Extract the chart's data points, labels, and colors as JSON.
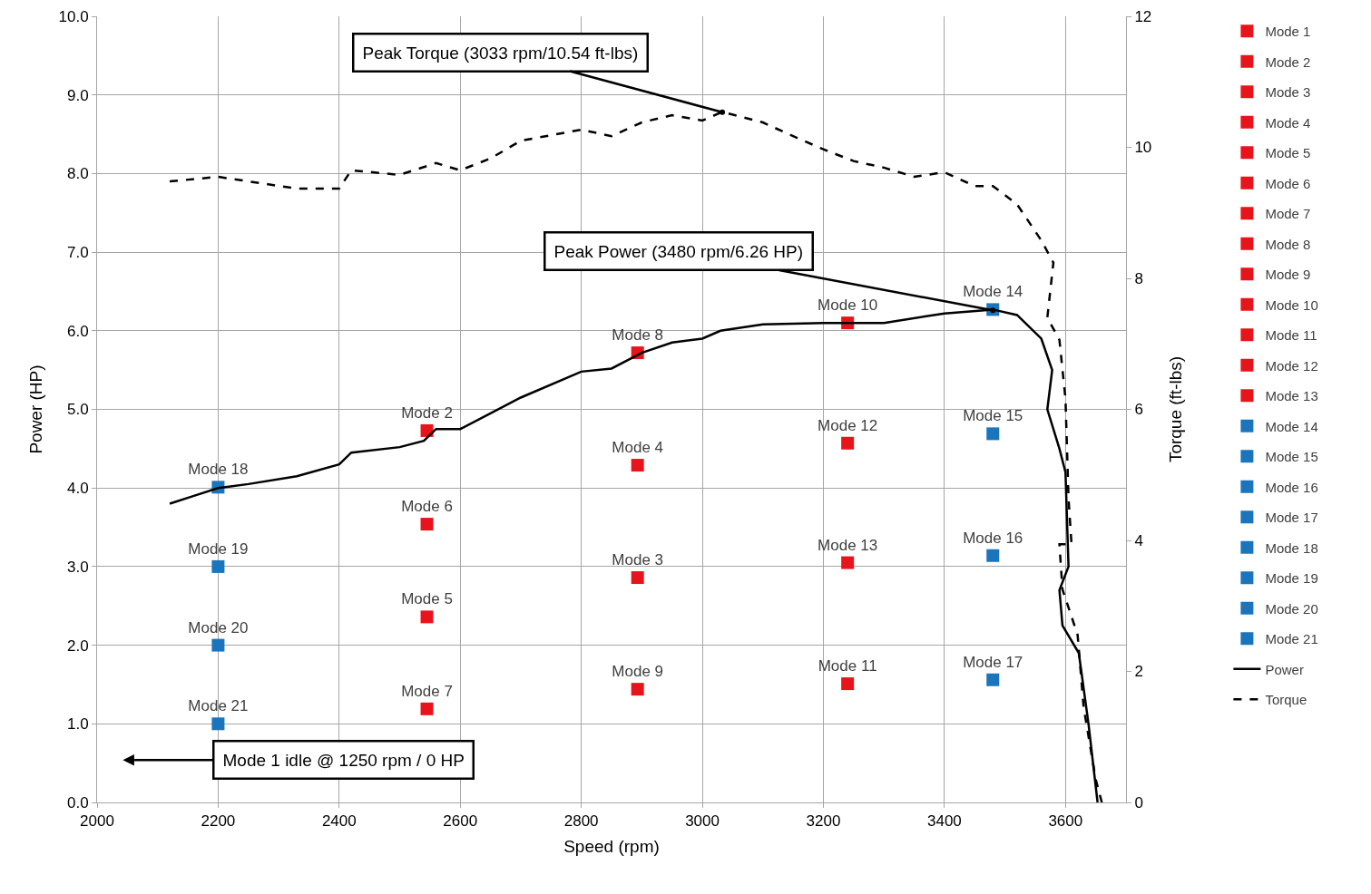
{
  "chart_data": {
    "type": "scatter",
    "xlabel": "Speed (rpm)",
    "ylabel": "Power (HP)",
    "y2label": "Torque (ft-lbs)",
    "xlim": [
      2000,
      3700
    ],
    "xticks": [
      2000,
      2200,
      2400,
      2600,
      2800,
      3000,
      3200,
      3400,
      3600
    ],
    "ylim": [
      0,
      10
    ],
    "yticks": [
      {
        "value": 0,
        "label": "0.0"
      },
      {
        "value": 1,
        "label": "1.0"
      },
      {
        "value": 2,
        "label": "2.0"
      },
      {
        "value": 3,
        "label": "3.0"
      },
      {
        "value": 4,
        "label": "4.0"
      },
      {
        "value": 5,
        "label": "5.0"
      },
      {
        "value": 6,
        "label": "6.0"
      },
      {
        "value": 7,
        "label": "7.0"
      },
      {
        "value": 8,
        "label": "8.0"
      },
      {
        "value": 9,
        "label": "9.0"
      },
      {
        "value": 10,
        "label": "10.0"
      }
    ],
    "y2lim": [
      0,
      12
    ],
    "y2ticks": [
      0,
      2,
      4,
      6,
      8,
      10,
      12
    ],
    "grid": true,
    "legend": "right",
    "marker": "square",
    "annotations": [
      {
        "text": "Peak Torque (3033 rpm/10.54 ft-lbs)",
        "x": 3033,
        "y": 8.78
      },
      {
        "text": "Peak Power (3480 rpm/6.26 HP)",
        "x": 3480,
        "y": 6.26
      },
      "Mode 1 idle @ 1250 rpm / 0 HP"
    ],
    "series": [
      {
        "name": "Mode 1",
        "color": "#e8141c",
        "x": [
          null
        ],
        "values": [
          null
        ]
      },
      {
        "name": "Mode 2",
        "color": "#e8141c",
        "x": [
          2545
        ],
        "values": [
          4.73
        ]
      },
      {
        "name": "Mode 3",
        "color": "#e8141c",
        "x": [
          2893
        ],
        "values": [
          2.86
        ]
      },
      {
        "name": "Mode 4",
        "color": "#e8141c",
        "x": [
          2893
        ],
        "values": [
          4.29
        ]
      },
      {
        "name": "Mode 5",
        "color": "#e8141c",
        "x": [
          2545
        ],
        "values": [
          2.36
        ]
      },
      {
        "name": "Mode 6",
        "color": "#e8141c",
        "x": [
          2545
        ],
        "values": [
          3.54
        ]
      },
      {
        "name": "Mode 7",
        "color": "#e8141c",
        "x": [
          2545
        ],
        "values": [
          1.19
        ]
      },
      {
        "name": "Mode 8",
        "color": "#e8141c",
        "x": [
          2893
        ],
        "values": [
          5.72
        ]
      },
      {
        "name": "Mode 9",
        "color": "#e8141c",
        "x": [
          2893
        ],
        "values": [
          1.44
        ]
      },
      {
        "name": "Mode 10",
        "color": "#e8141c",
        "x": [
          3240
        ],
        "values": [
          6.1
        ]
      },
      {
        "name": "Mode 11",
        "color": "#e8141c",
        "x": [
          3240
        ],
        "values": [
          1.51
        ]
      },
      {
        "name": "Mode 12",
        "color": "#e8141c",
        "x": [
          3240
        ],
        "values": [
          4.57
        ]
      },
      {
        "name": "Mode 13",
        "color": "#e8141c",
        "x": [
          3240
        ],
        "values": [
          3.05
        ]
      },
      {
        "name": "Mode 14",
        "color": "#1a75bc",
        "x": [
          3480
        ],
        "values": [
          6.27
        ]
      },
      {
        "name": "Mode 15",
        "color": "#1a75bc",
        "x": [
          3480
        ],
        "values": [
          4.69
        ]
      },
      {
        "name": "Mode 16",
        "color": "#1a75bc",
        "x": [
          3480
        ],
        "values": [
          3.14
        ]
      },
      {
        "name": "Mode 17",
        "color": "#1a75bc",
        "x": [
          3480
        ],
        "values": [
          1.56
        ]
      },
      {
        "name": "Mode 18",
        "color": "#1a75bc",
        "x": [
          2200
        ],
        "values": [
          4.01
        ]
      },
      {
        "name": "Mode 19",
        "color": "#1a75bc",
        "x": [
          2200
        ],
        "values": [
          3.0
        ]
      },
      {
        "name": "Mode 20",
        "color": "#1a75bc",
        "x": [
          2200
        ],
        "values": [
          2.0
        ]
      },
      {
        "name": "Mode 21",
        "color": "#1a75bc",
        "x": [
          2200
        ],
        "values": [
          1.0
        ]
      },
      {
        "name": "Power",
        "type": "line",
        "marker": "none",
        "line_style": "solid",
        "color": "#000000",
        "x": [
          2120,
          2160,
          2200,
          2250,
          2330,
          2400,
          2420,
          2500,
          2540,
          2560,
          2600,
          2650,
          2700,
          2800,
          2850,
          2900,
          2950,
          3000,
          3030,
          3100,
          3200,
          3300,
          3400,
          3480,
          3520,
          3560,
          3578,
          3570,
          3590,
          3600,
          3605,
          3590,
          3595,
          3622,
          3638,
          3653
        ],
        "values": [
          3.8,
          3.9,
          4.0,
          4.05,
          4.15,
          4.3,
          4.45,
          4.52,
          4.6,
          4.75,
          4.75,
          4.95,
          5.15,
          5.48,
          5.52,
          5.72,
          5.85,
          5.9,
          6.0,
          6.08,
          6.1,
          6.1,
          6.22,
          6.27,
          6.2,
          5.9,
          5.5,
          5.0,
          4.5,
          4.2,
          3.0,
          2.7,
          2.25,
          1.9,
          1.0,
          0.0
        ]
      },
      {
        "name": "Torque",
        "type": "line",
        "marker": "none",
        "line_style": "dashed",
        "axis": "y2",
        "color": "#000000",
        "x": [
          2120,
          2200,
          2330,
          2400,
          2420,
          2500,
          2560,
          2600,
          2650,
          2700,
          2800,
          2850,
          2900,
          2950,
          3000,
          3033,
          3100,
          3150,
          3200,
          3250,
          3300,
          3350,
          3400,
          3450,
          3480,
          3520,
          3560,
          3580,
          3570,
          3590,
          3600,
          3605,
          3610,
          3590,
          3595,
          3620,
          3630,
          3650,
          3660
        ],
        "values": [
          9.48,
          9.55,
          9.37,
          9.37,
          9.65,
          9.58,
          9.76,
          9.65,
          9.83,
          10.1,
          10.27,
          10.17,
          10.38,
          10.49,
          10.41,
          10.54,
          10.38,
          10.17,
          9.97,
          9.79,
          9.69,
          9.55,
          9.62,
          9.41,
          9.41,
          9.13,
          8.58,
          8.24,
          7.4,
          7.06,
          6.16,
          4.64,
          3.94,
          3.94,
          3.25,
          2.56,
          1.45,
          0.35,
          0
        ]
      }
    ]
  }
}
